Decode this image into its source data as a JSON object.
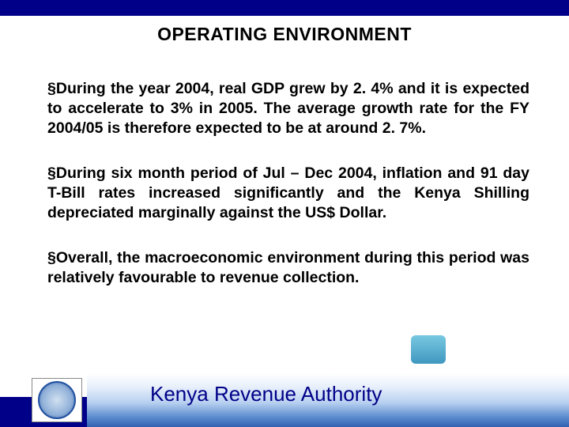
{
  "colors": {
    "header_bar": "#000088",
    "title_text": "#000000",
    "body_text": "#000000",
    "footer_text": "#000088",
    "background": "#ffffff",
    "gradient_top": "#ffffff",
    "gradient_bottom": "#3060b0",
    "logo_border": "#2050a0",
    "badge_top": "#78c8e0",
    "badge_bottom": "#4098c0"
  },
  "typography": {
    "title_fontsize": 23,
    "title_weight": "bold",
    "body_fontsize": 19.5,
    "body_weight": "bold",
    "footer_fontsize": 26,
    "font_family": "Arial"
  },
  "title": "OPERATING ENVIRONMENT",
  "bullet_marker": "§",
  "bullets": [
    "During the year 2004, real GDP grew by 2. 4% and it is expected to accelerate to 3% in 2005. The average growth rate for the FY 2004/05 is therefore expected to be at around 2. 7%.",
    "During six month period of Jul – Dec 2004, inflation and 91 day T-Bill rates increased significantly and the Kenya Shilling depreciated marginally against the US$ Dollar.",
    "Overall, the macroeconomic environment during this period was relatively favourable to revenue collection."
  ],
  "footer_label": "Kenya Revenue Authority"
}
